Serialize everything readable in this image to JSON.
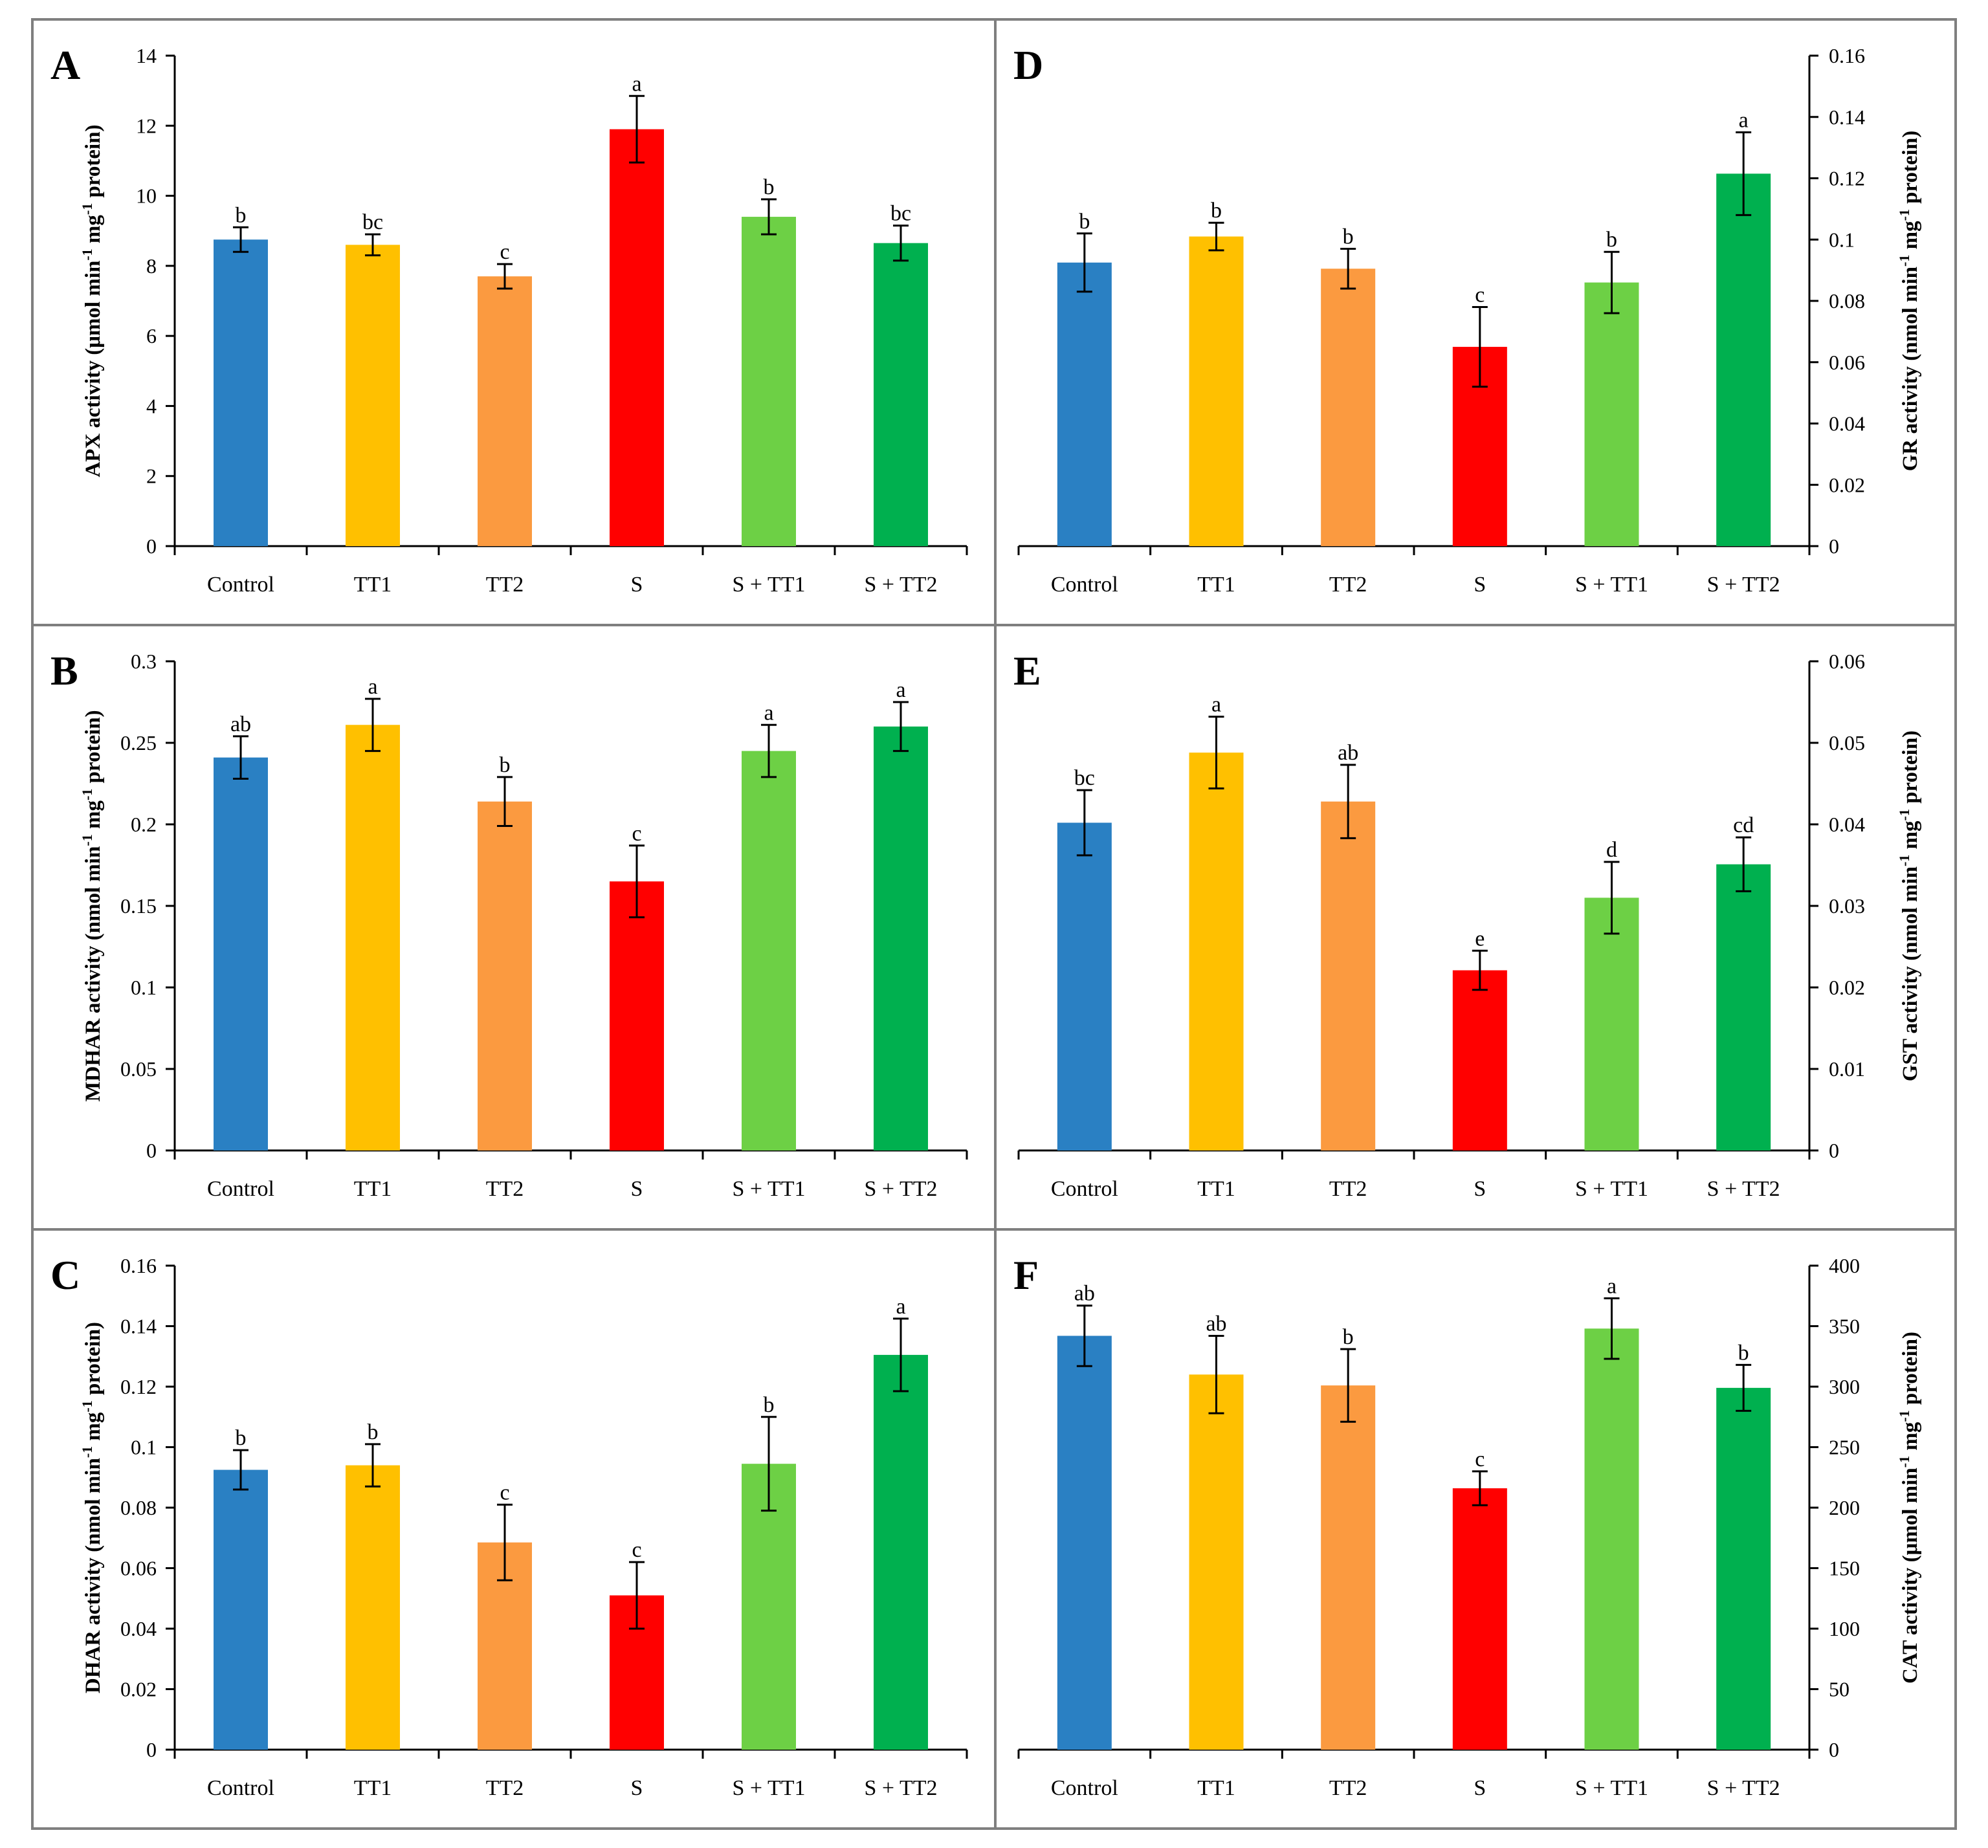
{
  "colors": {
    "Control": "#2a80c3",
    "TT1": "#ffc000",
    "TT2": "#fb9a40",
    "S": "#ff0000",
    "S + TT1": "#6dd045",
    "S + TT2": "#00b04f"
  },
  "chart_data": [
    {
      "id": "A",
      "type": "bar",
      "label": "A",
      "yaxis_side": "left",
      "ylabel": "APX activity (μmol min⁻¹ mg⁻¹ protein)",
      "ylim": [
        0,
        14
      ],
      "yticks": [
        0,
        2,
        4,
        6,
        8,
        10,
        12,
        14
      ],
      "ytick_labels": [
        "0",
        "2",
        "4",
        "6",
        "8",
        "10",
        "12",
        "14"
      ],
      "categories": [
        "Control",
        "TT1",
        "TT2",
        "S",
        "S + TT1",
        "S + TT2"
      ],
      "values": [
        8.75,
        8.6,
        7.7,
        11.9,
        9.4,
        8.65
      ],
      "errors": [
        0.35,
        0.3,
        0.35,
        0.95,
        0.5,
        0.5
      ],
      "letters": [
        "b",
        "bc",
        "c",
        "a",
        "b",
        "bc"
      ]
    },
    {
      "id": "D",
      "type": "bar",
      "label": "D",
      "yaxis_side": "right",
      "ylabel": "GR activity (nmol min⁻¹ mg⁻¹ protein)",
      "ylim": [
        0,
        0.16
      ],
      "yticks": [
        0,
        0.02,
        0.04,
        0.06,
        0.08,
        0.1,
        0.12,
        0.14,
        0.16
      ],
      "ytick_labels": [
        "0",
        "0.02",
        "0.04",
        "0.06",
        "0.08",
        "0.1",
        "0.12",
        "0.14",
        "0.16"
      ],
      "categories": [
        "Control",
        "TT1",
        "TT2",
        "S",
        "S + TT1",
        "S + TT2"
      ],
      "values": [
        0.0925,
        0.101,
        0.0905,
        0.065,
        0.086,
        0.1215
      ],
      "errors": [
        0.0095,
        0.0045,
        0.0065,
        0.013,
        0.01,
        0.0135
      ],
      "letters": [
        "b",
        "b",
        "b",
        "c",
        "b",
        "a"
      ]
    },
    {
      "id": "B",
      "type": "bar",
      "label": "B",
      "yaxis_side": "left",
      "ylabel": "MDHAR activity (nmol min⁻¹ mg⁻¹ protein)",
      "ylim": [
        0,
        0.3
      ],
      "yticks": [
        0,
        0.05,
        0.1,
        0.15,
        0.2,
        0.25,
        0.3
      ],
      "ytick_labels": [
        "0",
        "0.05",
        "0.1",
        "0.15",
        "0.2",
        "0.25",
        "0.3"
      ],
      "categories": [
        "Control",
        "TT1",
        "TT2",
        "S",
        "S + TT1",
        "S + TT2"
      ],
      "values": [
        0.241,
        0.261,
        0.214,
        0.165,
        0.245,
        0.26
      ],
      "errors": [
        0.013,
        0.016,
        0.015,
        0.022,
        0.016,
        0.015
      ],
      "letters": [
        "ab",
        "a",
        "b",
        "c",
        "a",
        "a"
      ]
    },
    {
      "id": "E",
      "type": "bar",
      "label": "E",
      "yaxis_side": "right",
      "ylabel": "GST activity (nmol min⁻¹ mg⁻¹ protein)",
      "ylim": [
        0,
        0.06
      ],
      "yticks": [
        0,
        0.01,
        0.02,
        0.03,
        0.04,
        0.05,
        0.06
      ],
      "ytick_labels": [
        "0",
        "0.01",
        "0.02",
        "0.03",
        "0.04",
        "0.05",
        "0.06"
      ],
      "categories": [
        "Control",
        "TT1",
        "TT2",
        "S",
        "S + TT1",
        "S + TT2"
      ],
      "values": [
        0.0402,
        0.0488,
        0.0428,
        0.0221,
        0.031,
        0.0351
      ],
      "errors": [
        0.004,
        0.0044,
        0.0045,
        0.0024,
        0.0044,
        0.0033
      ],
      "letters": [
        "bc",
        "a",
        "ab",
        "e",
        "d",
        "cd"
      ]
    },
    {
      "id": "C",
      "type": "bar",
      "label": "C",
      "yaxis_side": "left",
      "ylabel": "DHAR activity (nmol min⁻¹ mg⁻¹ protein)",
      "ylim": [
        0,
        0.16
      ],
      "yticks": [
        0,
        0.02,
        0.04,
        0.06,
        0.08,
        0.1,
        0.12,
        0.14,
        0.16
      ],
      "ytick_labels": [
        "0",
        "0.02",
        "0.04",
        "0.06",
        "0.08",
        "0.1",
        "0.12",
        "0.14",
        "0.16"
      ],
      "categories": [
        "Control",
        "TT1",
        "TT2",
        "S",
        "S + TT1",
        "S + TT2"
      ],
      "values": [
        0.0925,
        0.094,
        0.0685,
        0.051,
        0.0945,
        0.1305
      ],
      "errors": [
        0.0065,
        0.007,
        0.0125,
        0.011,
        0.0155,
        0.012
      ],
      "letters": [
        "b",
        "b",
        "c",
        "c",
        "b",
        "a"
      ]
    },
    {
      "id": "F",
      "type": "bar",
      "label": "F",
      "yaxis_side": "right",
      "ylabel": "CAT activity (μmol min⁻¹ mg⁻¹ protein)",
      "ylim": [
        0,
        400
      ],
      "yticks": [
        0,
        50,
        100,
        150,
        200,
        250,
        300,
        350,
        400
      ],
      "ytick_labels": [
        "0",
        "50",
        "100",
        "150",
        "200",
        "250",
        "300",
        "350",
        "400"
      ],
      "categories": [
        "Control",
        "TT1",
        "TT2",
        "S",
        "S + TT1",
        "S + TT2"
      ],
      "values": [
        342,
        310,
        301,
        216,
        348,
        299
      ],
      "errors": [
        25,
        32,
        30,
        14,
        25,
        19
      ],
      "letters": [
        "ab",
        "ab",
        "b",
        "c",
        "a",
        "b"
      ]
    }
  ]
}
